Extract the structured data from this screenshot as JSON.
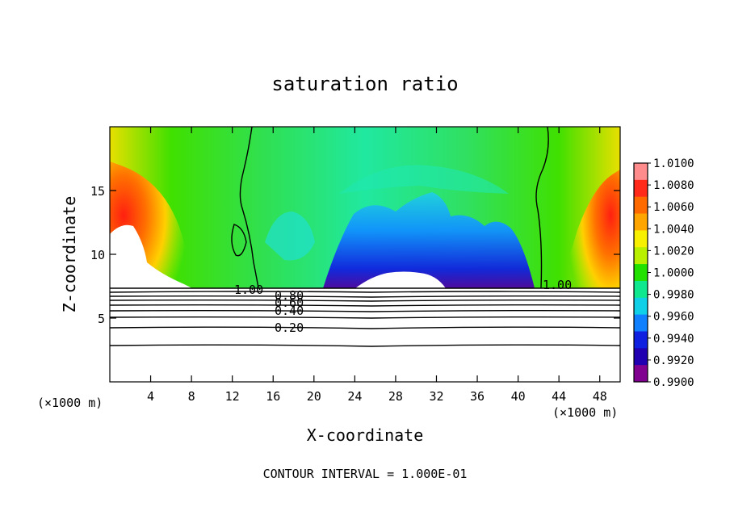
{
  "chart_data": {
    "type": "contour",
    "title": "saturation ratio",
    "xlabel": "X-coordinate",
    "ylabel": "Z-coordinate",
    "x_unit_label": "(×1000 m)",
    "z_unit_label": "(×1000 m)",
    "xlim": [
      0,
      50
    ],
    "ylim": [
      0,
      20
    ],
    "x_ticks": [
      4,
      8,
      12,
      16,
      20,
      24,
      28,
      32,
      36,
      40,
      44,
      48
    ],
    "y_ticks": [
      5,
      10,
      15
    ],
    "footer": "CONTOUR INTERVAL = 1.000E-01",
    "colorbar": {
      "levels": [
        "1.0100",
        "1.0080",
        "1.0060",
        "1.0040",
        "1.0020",
        "1.0000",
        "0.9980",
        "0.9960",
        "0.9940",
        "0.9920",
        "0.9900"
      ],
      "colors": [
        "#ff8c8c",
        "#ff2a1a",
        "#ff6a00",
        "#ffa500",
        "#f7f000",
        "#b8f000",
        "#22e000",
        "#10e890",
        "#10d0e8",
        "#1080ff",
        "#1020e0",
        "#2000b0",
        "#800090"
      ]
    },
    "contour_labels": [
      "1.00",
      "0.80",
      "0.60",
      "0.40",
      "0.20",
      "1.00"
    ]
  }
}
